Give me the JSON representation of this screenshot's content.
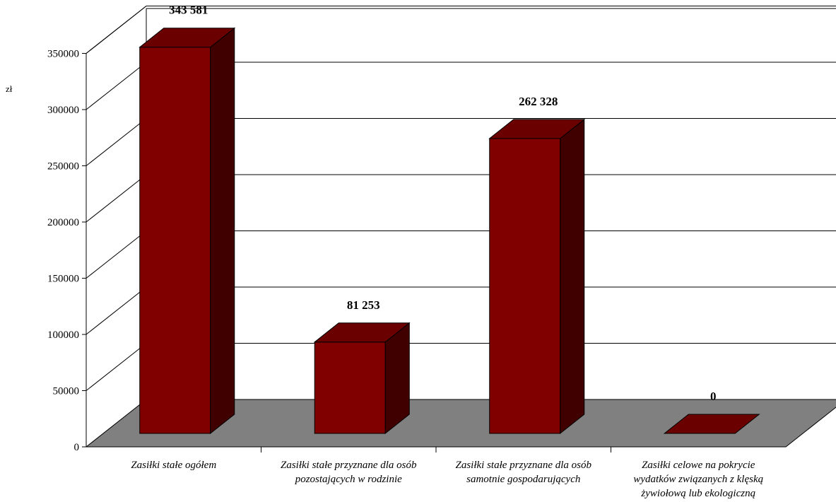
{
  "chart_data": {
    "type": "bar",
    "ylabel": "zł",
    "ylim": [
      0,
      350000
    ],
    "yticks": [
      "0",
      "50000",
      "100000",
      "150000",
      "200000",
      "250000",
      "300000",
      "350000"
    ],
    "categories": [
      "Zasiłki stałe ogółem",
      "Zasiłki stałe przyznane dla osób\npozostających w rodzinie",
      "Zasiłki stałe przyznane dla osób\nsamotnie gospodarujących",
      "Zasiłki celowe na pokrycie\nwydatków związanych z klęską\nżywiołową lub ekologiczną"
    ],
    "values": [
      343581,
      81253,
      262328,
      0
    ],
    "data_labels": [
      "343 581",
      "81 253",
      "262 328",
      "0"
    ],
    "grid": true,
    "colors": {
      "bar_front": "#800000",
      "bar_top": "#6a0000",
      "bar_side": "#400000",
      "floor": "#808080",
      "grid": "#000000"
    }
  }
}
